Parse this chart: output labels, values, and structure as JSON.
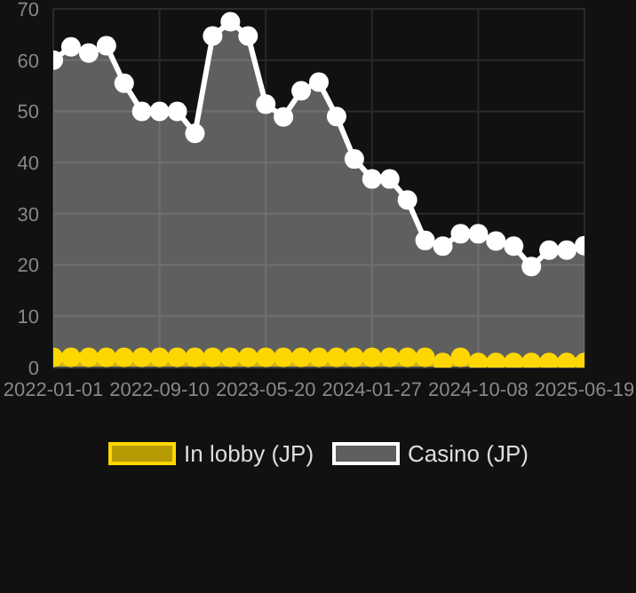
{
  "chart_data": {
    "type": "area",
    "categories": [
      "2022-01-01",
      null,
      null,
      null,
      null,
      null,
      "2022-09-10",
      null,
      null,
      null,
      null,
      null,
      "2023-05-20",
      null,
      null,
      null,
      null,
      null,
      "2024-01-27",
      null,
      null,
      null,
      null,
      null,
      "2024-10-08",
      null,
      null,
      null,
      null,
      null,
      "2025-06-19"
    ],
    "series": [
      {
        "name": "In lobby (JP)",
        "color": "#ffd700",
        "values": [
          2,
          2,
          2,
          2,
          2,
          2,
          2,
          2,
          2,
          2,
          2,
          2,
          2,
          2,
          2,
          2,
          2,
          2,
          2,
          2,
          2,
          2,
          1,
          2,
          1,
          1,
          1,
          1,
          1,
          1,
          1
        ]
      },
      {
        "name": "Casino (JP)",
        "color": "#ffffff",
        "values": [
          60,
          62.6,
          61.4,
          62.8,
          55.5,
          50,
          50,
          50,
          45.7,
          64.7,
          67.5,
          64.7,
          51.4,
          48.9,
          54,
          55.7,
          49,
          40.7,
          36.8,
          36.8,
          32.7,
          24.8,
          23.7,
          26.1,
          26.1,
          24.7,
          23.7,
          19.7,
          22.9,
          22.9,
          23.8
        ]
      }
    ],
    "ylim": [
      0,
      70
    ],
    "yticks": [
      0,
      10,
      20,
      30,
      40,
      50,
      60,
      70
    ],
    "grid": true,
    "legend": "bottom",
    "marker": "circle",
    "line_style": "solid"
  }
}
